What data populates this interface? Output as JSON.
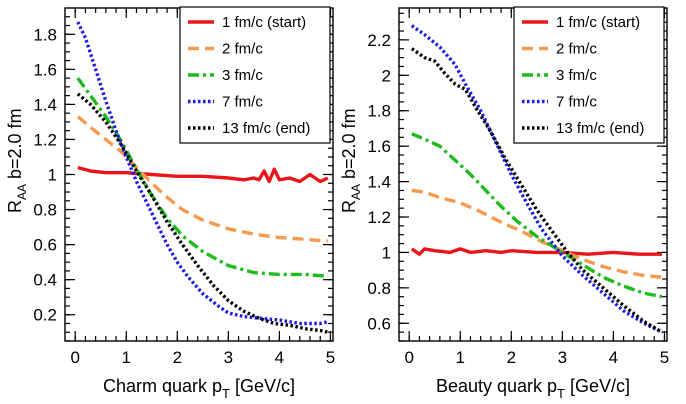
{
  "chart_data": [
    {
      "type": "line",
      "xlabel": "Charm quark p",
      "xlabel_sub": "T",
      "xlabel_unit": " [GeV/c]",
      "ylabel": "R",
      "ylabel_sub": "AA",
      "ylabel_rest": "  b=2.0 fm",
      "xlim": [
        -0.2,
        5.05
      ],
      "ylim": [
        0.05,
        1.95
      ],
      "xticks": [
        0,
        1,
        2,
        3,
        4,
        5
      ],
      "yticks": [
        0.2,
        0.4,
        0.6,
        0.8,
        1,
        1.2,
        1.4,
        1.6,
        1.8
      ],
      "legend_position": "top-right",
      "series": [
        {
          "name": "1 fm/c (start)",
          "color": "#e8161b",
          "style": "solid",
          "x": [
            0.05,
            0.3,
            0.6,
            1.0,
            1.5,
            2.0,
            2.5,
            3.0,
            3.3,
            3.5,
            3.6,
            3.7,
            3.8,
            3.9,
            4.0,
            4.2,
            4.4,
            4.6,
            4.8,
            4.95
          ],
          "y": [
            1.04,
            1.02,
            1.01,
            1.01,
            1.0,
            0.99,
            0.99,
            0.98,
            0.97,
            0.98,
            0.97,
            1.02,
            0.96,
            1.03,
            0.97,
            0.98,
            0.96,
            1.0,
            0.96,
            0.98
          ]
        },
        {
          "name": "2 fm/c",
          "color": "#f59a4e",
          "style": "dashed",
          "x": [
            0.05,
            0.3,
            0.6,
            0.9,
            1.2,
            1.5,
            1.8,
            2.1,
            2.5,
            3.0,
            3.5,
            4.0,
            4.5,
            4.95
          ],
          "y": [
            1.33,
            1.27,
            1.2,
            1.13,
            1.04,
            0.95,
            0.87,
            0.8,
            0.74,
            0.69,
            0.66,
            0.64,
            0.63,
            0.62
          ]
        },
        {
          "name": "3 fm/c",
          "color": "#1dbb1d",
          "style": "dashdot",
          "x": [
            0.05,
            0.3,
            0.6,
            0.9,
            1.2,
            1.5,
            1.8,
            2.1,
            2.5,
            3.0,
            3.5,
            4.0,
            4.5,
            4.95
          ],
          "y": [
            1.55,
            1.45,
            1.33,
            1.19,
            1.03,
            0.88,
            0.75,
            0.65,
            0.56,
            0.48,
            0.44,
            0.43,
            0.43,
            0.42
          ]
        },
        {
          "name": "7 fm/c",
          "color": "#1a1ae6",
          "style": "dotted",
          "x": [
            0.05,
            0.2,
            0.4,
            0.6,
            0.8,
            1.0,
            1.2,
            1.4,
            1.6,
            1.8,
            2.0,
            2.2,
            2.5,
            2.8,
            3.0,
            3.3,
            3.6,
            4.0,
            4.4,
            4.8,
            4.95
          ],
          "y": [
            1.87,
            1.78,
            1.6,
            1.42,
            1.25,
            1.1,
            0.96,
            0.84,
            0.72,
            0.6,
            0.5,
            0.42,
            0.32,
            0.25,
            0.21,
            0.19,
            0.18,
            0.17,
            0.15,
            0.15,
            0.16
          ]
        },
        {
          "name": "13 fm/c (end)",
          "color": "#000000",
          "style": "dotted",
          "x": [
            0.05,
            0.3,
            0.6,
            0.9,
            1.2,
            1.5,
            1.8,
            2.1,
            2.4,
            2.7,
            3.0,
            3.3,
            3.6,
            3.9,
            4.2,
            4.5,
            4.8,
            4.95
          ],
          "y": [
            1.46,
            1.4,
            1.3,
            1.17,
            1.02,
            0.88,
            0.73,
            0.6,
            0.48,
            0.37,
            0.28,
            0.22,
            0.18,
            0.15,
            0.14,
            0.12,
            0.11,
            0.1
          ]
        }
      ]
    },
    {
      "type": "line",
      "xlabel": "Beauty quark p",
      "xlabel_sub": "T",
      "xlabel_unit": " [GeV/c]",
      "ylabel": "R",
      "ylabel_sub": "AA",
      "ylabel_rest": "  b=2.0 fm",
      "xlim": [
        -0.2,
        5.05
      ],
      "ylim": [
        0.5,
        2.38
      ],
      "xticks": [
        0,
        1,
        2,
        3,
        4,
        5
      ],
      "yticks": [
        0.6,
        0.8,
        1,
        1.2,
        1.4,
        1.6,
        1.8,
        2,
        2.2
      ],
      "legend_position": "top-right",
      "series": [
        {
          "name": "1 fm/c (start)",
          "color": "#e8161b",
          "style": "solid",
          "x": [
            0.05,
            0.2,
            0.3,
            0.5,
            0.8,
            1.0,
            1.2,
            1.5,
            1.8,
            2.0,
            2.5,
            3.0,
            3.5,
            4.0,
            4.5,
            4.95
          ],
          "y": [
            1.02,
            0.99,
            1.02,
            1.01,
            1.0,
            1.02,
            1.0,
            1.01,
            1.0,
            1.01,
            1.0,
            1.0,
            0.99,
            1.0,
            0.99,
            0.99
          ]
        },
        {
          "name": "2 fm/c",
          "color": "#f59a4e",
          "style": "dashed",
          "x": [
            0.05,
            0.3,
            0.6,
            1.0,
            1.4,
            1.8,
            2.2,
            2.6,
            3.0,
            3.4,
            3.8,
            4.2,
            4.6,
            4.95
          ],
          "y": [
            1.35,
            1.34,
            1.31,
            1.28,
            1.23,
            1.17,
            1.12,
            1.06,
            1.01,
            0.96,
            0.92,
            0.89,
            0.87,
            0.86
          ]
        },
        {
          "name": "3 fm/c",
          "color": "#1dbb1d",
          "style": "dashdot",
          "x": [
            0.05,
            0.3,
            0.6,
            0.9,
            1.2,
            1.5,
            1.8,
            2.1,
            2.5,
            3.0,
            3.4,
            3.8,
            4.2,
            4.6,
            4.95
          ],
          "y": [
            1.67,
            1.64,
            1.6,
            1.52,
            1.44,
            1.35,
            1.26,
            1.18,
            1.09,
            1.0,
            0.93,
            0.86,
            0.81,
            0.77,
            0.75
          ]
        },
        {
          "name": "7 fm/c",
          "color": "#1a1ae6",
          "style": "dotted",
          "x": [
            0.05,
            0.3,
            0.6,
            0.9,
            1.1,
            1.4,
            1.7,
            2.0,
            2.3,
            2.6,
            3.0,
            3.4,
            3.8,
            4.2,
            4.6,
            4.95
          ],
          "y": [
            2.28,
            2.23,
            2.16,
            2.06,
            1.95,
            1.8,
            1.62,
            1.44,
            1.28,
            1.13,
            0.98,
            0.87,
            0.77,
            0.67,
            0.6,
            0.55
          ]
        },
        {
          "name": "13 fm/c (end)",
          "color": "#000000",
          "style": "dotted",
          "x": [
            0.05,
            0.3,
            0.5,
            0.7,
            0.9,
            1.1,
            1.3,
            1.6,
            1.9,
            2.2,
            2.5,
            2.8,
            3.1,
            3.4,
            3.8,
            4.2,
            4.6,
            4.95
          ],
          "y": [
            2.15,
            2.1,
            2.08,
            2.01,
            1.95,
            1.92,
            1.82,
            1.68,
            1.52,
            1.38,
            1.24,
            1.12,
            1.0,
            0.9,
            0.8,
            0.7,
            0.61,
            0.55
          ]
        }
      ]
    }
  ]
}
